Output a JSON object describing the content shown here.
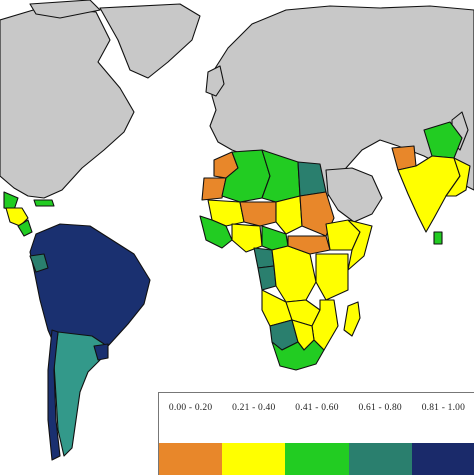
{
  "map": {
    "colors": {
      "no_data": "#c8c8c8",
      "c1": "#e8872a",
      "c2": "#ffff00",
      "c3": "#22cc22",
      "c4": "#2a7f6e",
      "c5": "#1a2a6a",
      "south_america_blue": "#1a3070",
      "argentina_teal": "#33998a"
    }
  },
  "legend": {
    "items": [
      {
        "label": "0.00 - 0.20",
        "color": "#e8872a"
      },
      {
        "label": "0.21 - 0.40",
        "color": "#ffff00"
      },
      {
        "label": "0.41 - 0.60",
        "color": "#22cc22"
      },
      {
        "label": "0.61 - 0.80",
        "color": "#2a7f6e"
      },
      {
        "label": "0.81 - 1.00",
        "color": "#1a2a6a"
      }
    ]
  }
}
